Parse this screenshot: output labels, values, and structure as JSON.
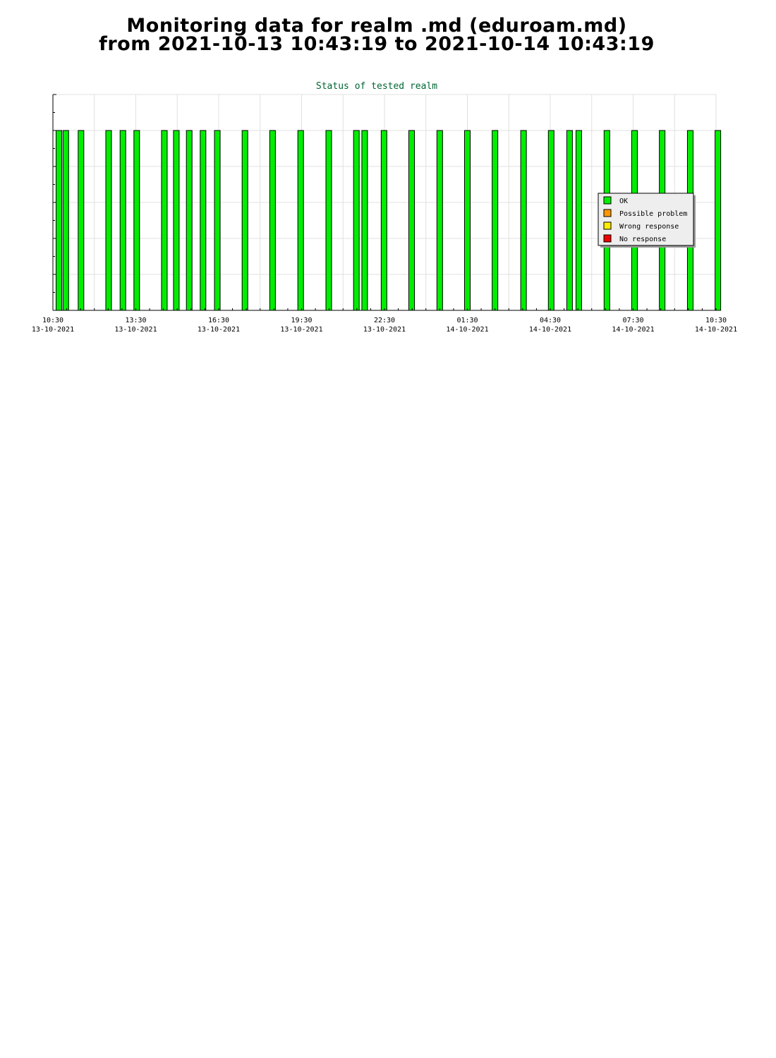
{
  "page": {
    "title_line1": "Monitoring data for realm .md  (eduroam.md)",
    "title_line2": "from 2021-10-13 10:43:19 to 2021-10-14 10:43:19"
  },
  "chart_data": {
    "type": "bar",
    "title": "Status of tested realm",
    "xlabel": "",
    "ylabel": "",
    "x_range": [
      "2021-10-13 10:30",
      "2021-10-14 10:30"
    ],
    "ylim": [
      0,
      6
    ],
    "grid": true,
    "x_ticks": [
      {
        "time": "10:30",
        "date": "13-10-2021",
        "at": "2021-10-13 10:30"
      },
      {
        "time": "13:30",
        "date": "13-10-2021",
        "at": "2021-10-13 13:30"
      },
      {
        "time": "16:30",
        "date": "13-10-2021",
        "at": "2021-10-13 16:30"
      },
      {
        "time": "19:30",
        "date": "13-10-2021",
        "at": "2021-10-13 19:30"
      },
      {
        "time": "22:30",
        "date": "13-10-2021",
        "at": "2021-10-13 22:30"
      },
      {
        "time": "01:30",
        "date": "14-10-2021",
        "at": "2021-10-14 01:30"
      },
      {
        "time": "04:30",
        "date": "14-10-2021",
        "at": "2021-10-14 04:30"
      },
      {
        "time": "07:30",
        "date": "14-10-2021",
        "at": "2021-10-14 07:30"
      },
      {
        "time": "10:30",
        "date": "14-10-2021",
        "at": "2021-10-14 10:30"
      }
    ],
    "legend": {
      "placement": "right",
      "entries": [
        {
          "label": "OK",
          "color": "#00ee00"
        },
        {
          "label": "Possible problem",
          "color": "#ff9900"
        },
        {
          "label": "Wrong response",
          "color": "#ffee00"
        },
        {
          "label": "No response",
          "color": "#ee0000"
        }
      ]
    },
    "series": [
      {
        "name": "OK",
        "color": "#00ee00",
        "value": 5,
        "x": [
          "2021-10-13 10:43",
          "2021-10-13 10:58",
          "2021-10-13 11:31",
          "2021-10-13 12:31",
          "2021-10-13 13:02",
          "2021-10-13 13:32",
          "2021-10-13 14:32",
          "2021-10-13 14:58",
          "2021-10-13 15:26",
          "2021-10-13 15:56",
          "2021-10-13 16:27",
          "2021-10-13 17:27",
          "2021-10-13 18:27",
          "2021-10-13 19:28",
          "2021-10-13 20:29",
          "2021-10-13 21:29",
          "2021-10-13 21:47",
          "2021-10-13 22:29",
          "2021-10-13 23:29",
          "2021-10-14 00:30",
          "2021-10-14 01:30",
          "2021-10-14 02:30",
          "2021-10-14 03:32",
          "2021-10-14 04:32",
          "2021-10-14 05:12",
          "2021-10-14 05:32",
          "2021-10-14 06:33",
          "2021-10-14 07:33",
          "2021-10-14 08:33",
          "2021-10-14 09:34",
          "2021-10-14 10:34"
        ]
      }
    ]
  }
}
